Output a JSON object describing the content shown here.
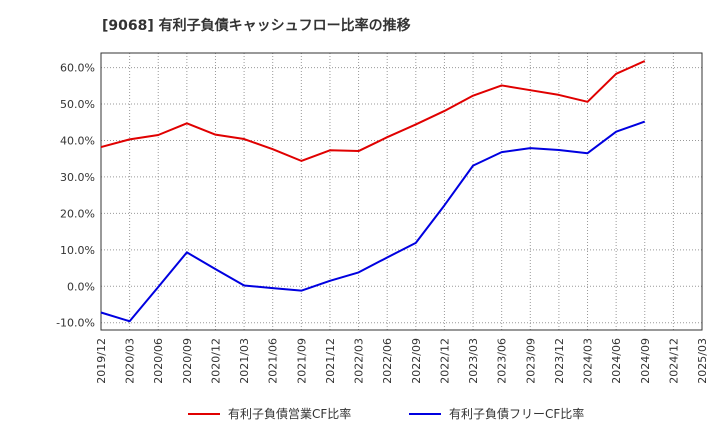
{
  "chart_data": {
    "type": "line",
    "title": "[9068]  有利子負債キャッシュフロー比率の推移",
    "xlabel": "",
    "ylabel": "",
    "ylim": [
      -12,
      64
    ],
    "yticks": [
      "-10.0%",
      "0.0%",
      "10.0%",
      "20.0%",
      "30.0%",
      "40.0%",
      "50.0%",
      "60.0%"
    ],
    "ytick_values": [
      -10,
      0,
      10,
      20,
      30,
      40,
      50,
      60
    ],
    "categories": [
      "2019/12",
      "2020/03",
      "2020/06",
      "2020/09",
      "2020/12",
      "2021/03",
      "2021/06",
      "2021/09",
      "2021/12",
      "2022/03",
      "2022/06",
      "2022/09",
      "2022/12",
      "2023/03",
      "2023/06",
      "2023/09",
      "2023/12",
      "2024/03",
      "2024/06",
      "2024/09",
      "2024/12",
      "2025/03"
    ],
    "grid": true,
    "legend_position": "bottom",
    "series": [
      {
        "name": "有利子負債営業CF比率",
        "color": "#e00000",
        "values": [
          38.2,
          40.3,
          41.5,
          44.7,
          41.6,
          40.4,
          37.6,
          34.4,
          37.3,
          37.1,
          40.9,
          44.4,
          48.1,
          52.3,
          55.1,
          53.8,
          52.5,
          50.6,
          58.3,
          61.8,
          null,
          null
        ]
      },
      {
        "name": "有利子負債フリーCF比率",
        "color": "#0000e0",
        "values": [
          -7.2,
          -9.6,
          -0.2,
          9.3,
          4.7,
          0.2,
          -0.5,
          -1.2,
          1.5,
          3.8,
          7.9,
          11.9,
          22.2,
          33.1,
          36.8,
          37.9,
          37.4,
          36.5,
          42.4,
          45.2,
          null,
          null
        ]
      }
    ]
  }
}
